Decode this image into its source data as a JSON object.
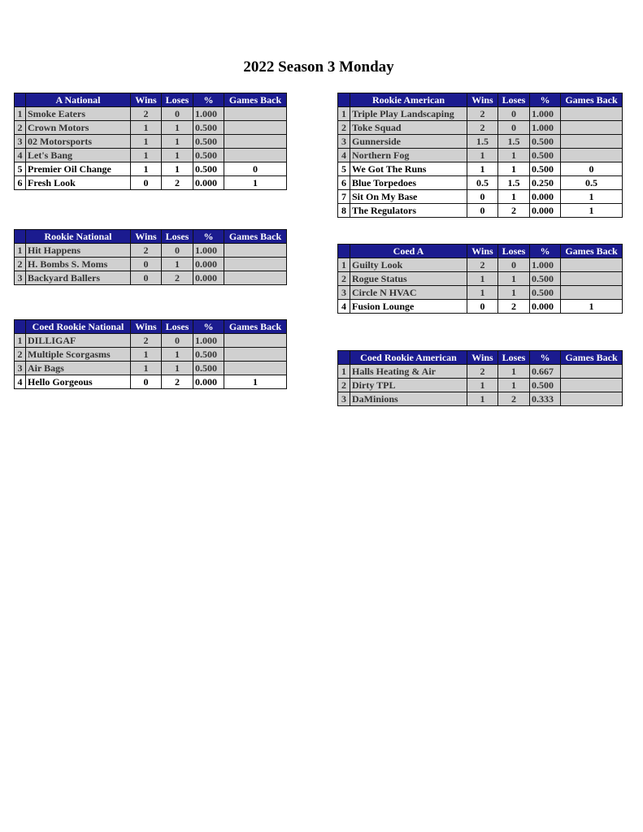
{
  "title": "2022 Season 3 Monday",
  "columns": [
    "Wins",
    "Loses",
    "%",
    "Games Back"
  ],
  "tables": [
    {
      "name": "A National",
      "rows": [
        [
          "1",
          "Smoke Eaters",
          "2",
          "0",
          "1.000",
          ""
        ],
        [
          "2",
          "Crown Motors",
          "1",
          "1",
          "0.500",
          ""
        ],
        [
          "3",
          "02 Motorsports",
          "1",
          "1",
          "0.500",
          ""
        ],
        [
          "4",
          "Let's Bang",
          "1",
          "1",
          "0.500",
          ""
        ],
        [
          "5",
          "Premier Oil Change",
          "1",
          "1",
          "0.500",
          "0"
        ],
        [
          "6",
          "Fresh Look",
          "0",
          "2",
          "0.000",
          "1"
        ]
      ]
    },
    {
      "name": "Rookie National",
      "rows": [
        [
          "1",
          "Hit Happens",
          "2",
          "0",
          "1.000",
          ""
        ],
        [
          "2",
          "H. Bombs S. Moms",
          "0",
          "1",
          "0.000",
          ""
        ],
        [
          "3",
          "Backyard Ballers",
          "0",
          "2",
          "0.000",
          ""
        ]
      ]
    },
    {
      "name": "Coed Rookie National",
      "rows": [
        [
          "1",
          "DILLIGAF",
          "2",
          "0",
          "1.000",
          ""
        ],
        [
          "2",
          "Multiple Scorgasms",
          "1",
          "1",
          "0.500",
          ""
        ],
        [
          "3",
          "Air Bags",
          "1",
          "1",
          "0.500",
          ""
        ],
        [
          "4",
          "Hello Gorgeous",
          "0",
          "2",
          "0.000",
          "1"
        ]
      ]
    },
    {
      "name": "Rookie American",
      "rows": [
        [
          "1",
          "Triple Play Landscaping",
          "2",
          "0",
          "1.000",
          ""
        ],
        [
          "2",
          "Toke Squad",
          "2",
          "0",
          "1.000",
          ""
        ],
        [
          "3",
          "Gunnerside",
          "1.5",
          "1.5",
          "0.500",
          ""
        ],
        [
          "4",
          "Northern Fog",
          "1",
          "1",
          "0.500",
          ""
        ],
        [
          "5",
          "We Got The Runs",
          "1",
          "1",
          "0.500",
          "0"
        ],
        [
          "6",
          "Blue Torpedoes",
          "0.5",
          "1.5",
          "0.250",
          "0.5"
        ],
        [
          "7",
          "Sit On My Base",
          "0",
          "1",
          "0.000",
          "1"
        ],
        [
          "8",
          "The Regulators",
          "0",
          "2",
          "0.000",
          "1"
        ]
      ]
    },
    {
      "name": "Coed A",
      "rows": [
        [
          "1",
          "Guilty Look",
          "2",
          "0",
          "1.000",
          ""
        ],
        [
          "2",
          "Rogue Status",
          "1",
          "1",
          "0.500",
          ""
        ],
        [
          "3",
          "Circle N HVAC",
          "1",
          "1",
          "0.500",
          ""
        ],
        [
          "4",
          "Fusion Lounge",
          "0",
          "2",
          "0.000",
          "1"
        ]
      ]
    },
    {
      "name": "Coed Rookie American",
      "rows": [
        [
          "1",
          "Halls Heating & Air",
          "2",
          "1",
          "0.667",
          ""
        ],
        [
          "2",
          "Dirty TPL",
          "1",
          "1",
          "0.500",
          ""
        ],
        [
          "3",
          "DaMinions",
          "1",
          "2",
          "0.333",
          ""
        ]
      ]
    }
  ]
}
